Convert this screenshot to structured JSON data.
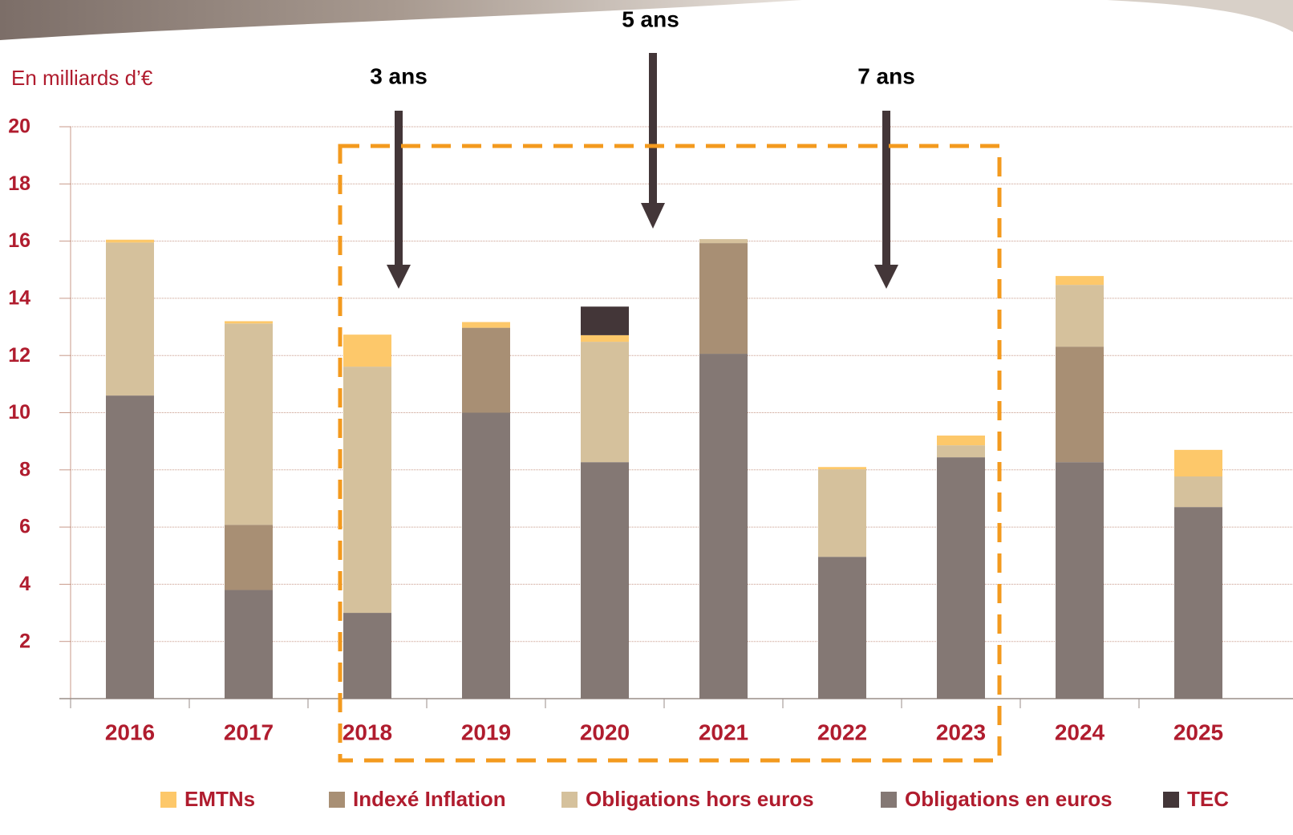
{
  "chart_data": {
    "type": "stacked_bar",
    "unit_label": "En milliards d’€",
    "annotations": [
      "3 ans",
      "5 ans",
      "7 ans"
    ],
    "categories": [
      "2016",
      "2017",
      "2018",
      "2019",
      "2020",
      "2021",
      "2022",
      "2023",
      "2024",
      "2025"
    ],
    "series": [
      {
        "name": "Obligations en euros",
        "color": "#847874",
        "values": [
          10.6,
          3.8,
          3.0,
          10.0,
          8.27,
          12.06,
          4.96,
          8.44,
          8.27,
          6.7
        ]
      },
      {
        "name": "Indexé Inflation",
        "color": "#a88f74",
        "values": [
          0,
          2.28,
          0,
          2.97,
          0,
          3.87,
          0,
          0,
          4.04,
          0
        ]
      },
      {
        "name": "Obligations hors euros",
        "color": "#d5c19c",
        "values": [
          5.35,
          7.04,
          8.61,
          0,
          4.21,
          0.14,
          3.06,
          0.42,
          2.16,
          1.07
        ]
      },
      {
        "name": "EMTNs",
        "color": "#fdc86a",
        "values": [
          0.1,
          0.08,
          1.12,
          0.2,
          0.23,
          0,
          0.08,
          0.34,
          0.31,
          0.93
        ]
      },
      {
        "name": "TEC",
        "color": "#433638",
        "values": [
          0,
          0,
          0,
          0,
          1.0,
          0,
          0,
          0,
          0,
          0
        ]
      }
    ],
    "ylim": [
      0,
      20
    ],
    "yticks": [
      2,
      4,
      6,
      8,
      10,
      12,
      14,
      16,
      18,
      20
    ],
    "grid": true
  }
}
